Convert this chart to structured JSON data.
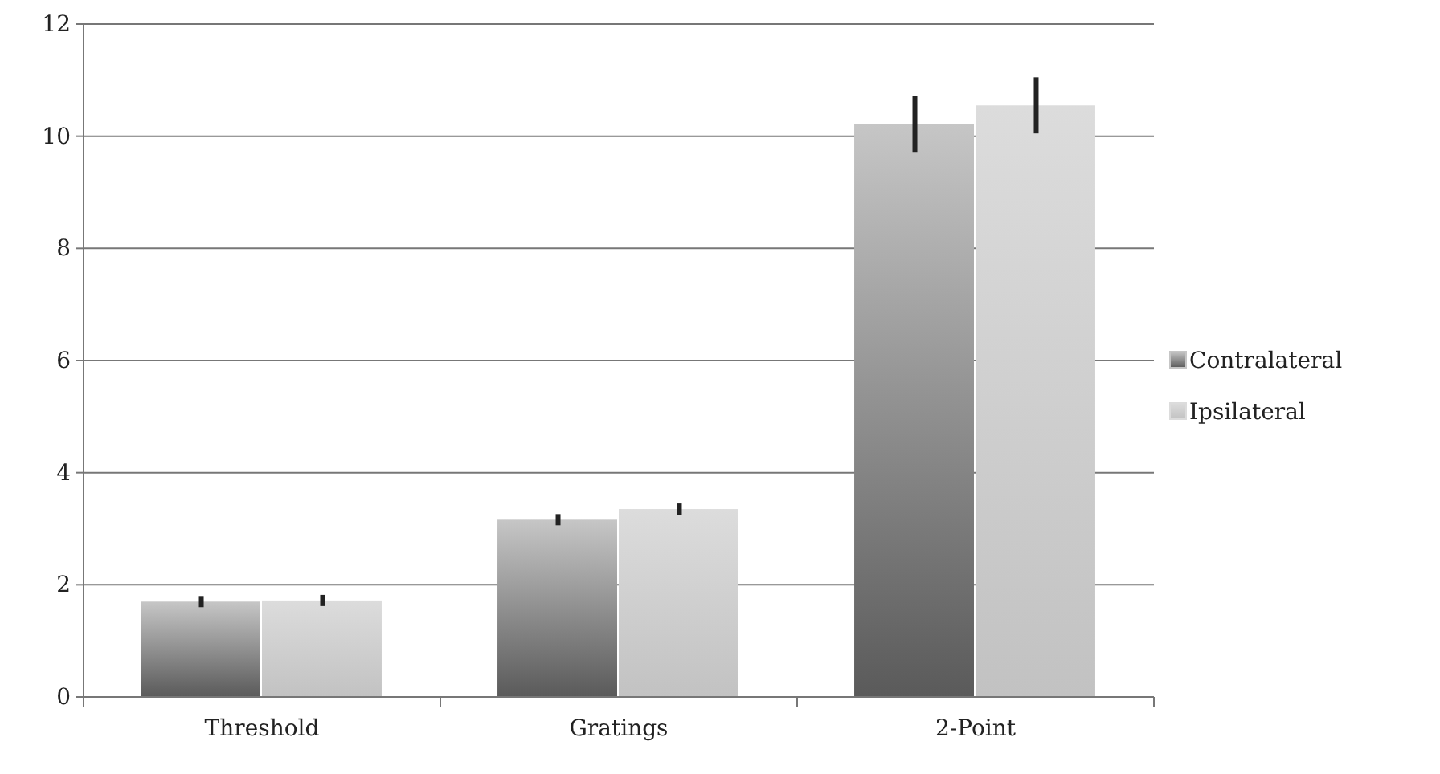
{
  "chart_data": {
    "type": "bar",
    "categories": [
      "Threshold",
      "Gratings",
      "2-Point"
    ],
    "series": [
      {
        "name": "Contralateral",
        "color": "#c6c6c6",
        "values": [
          1.7,
          3.16,
          10.22
        ],
        "errors": [
          0.1,
          0.1,
          0.5
        ]
      },
      {
        "name": "Ipsilateral",
        "color": "#dcdcdc",
        "values": [
          1.72,
          3.35,
          10.55
        ],
        "errors": [
          0.1,
          0.1,
          0.5
        ]
      }
    ],
    "ylim": [
      0,
      12
    ],
    "yticks": [
      0,
      2,
      4,
      6,
      8,
      10,
      12
    ],
    "grid": "y",
    "legend": "right"
  }
}
